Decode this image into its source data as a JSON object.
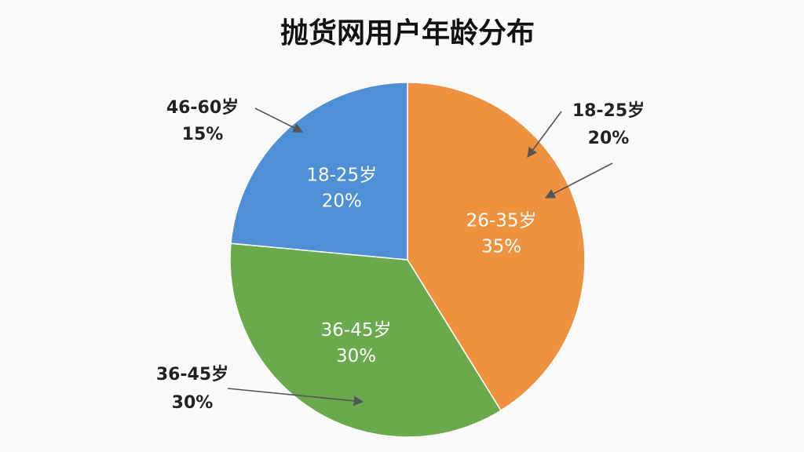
{
  "chart_data": {
    "type": "pie",
    "title": "抛货网用户年龄分布",
    "categories": [
      "26-35岁",
      "36-45岁",
      "18-25岁"
    ],
    "values": [
      35,
      30,
      20
    ],
    "value_labels": [
      "35%",
      "30%",
      "20%"
    ],
    "colors": [
      "#ee9240",
      "#6aaa4c",
      "#4f8fd6"
    ],
    "annotations": [
      {
        "label": "46-60岁",
        "value_label": "15%"
      },
      {
        "label": "18-25岁",
        "value_label": "20%"
      },
      {
        "label": "36-45岁",
        "value_label": "30%"
      }
    ]
  }
}
